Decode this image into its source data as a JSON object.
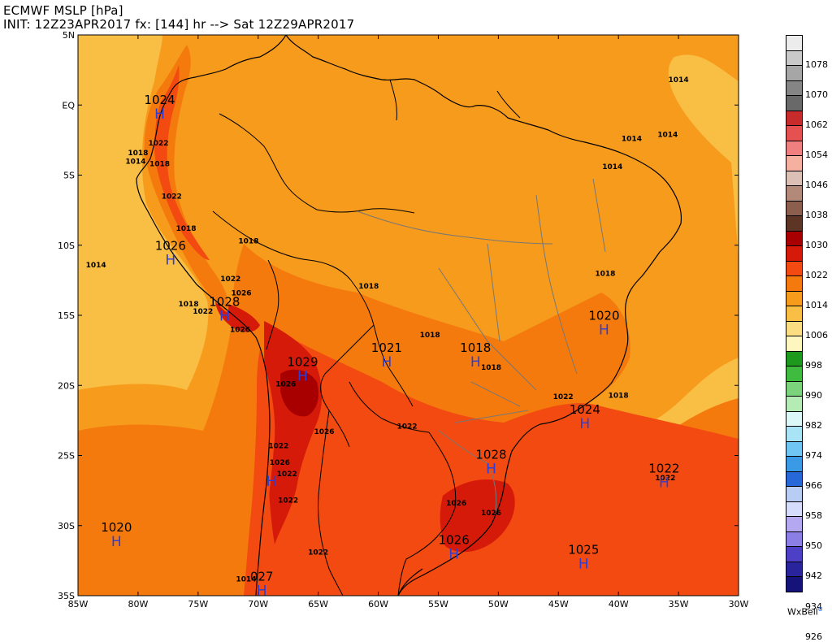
{
  "header": {
    "line1": "ECMWF MSLP [hPa]",
    "line2": "INIT: 12Z23APR2017 fx: [144] hr --> Sat 12Z29APR2017"
  },
  "map": {
    "lat_labels": [
      "5N",
      "EQ",
      "5S",
      "10S",
      "15S",
      "20S",
      "25S",
      "30S",
      "35S"
    ],
    "lon_labels": [
      "85W",
      "80W",
      "75W",
      "70W",
      "65W",
      "60W",
      "55W",
      "50W",
      "45W",
      "40W",
      "35W",
      "30W"
    ],
    "high_centers": [
      {
        "label": "1024",
        "lat": -0.5,
        "lon": -78.2
      },
      {
        "label": "1026",
        "lat": -10.9,
        "lon": -77.3
      },
      {
        "label": "1028",
        "lat": -14.9,
        "lon": -72.8
      },
      {
        "label": "1029",
        "lat": -19.2,
        "lon": -66.3
      },
      {
        "label": "1021",
        "lat": -18.2,
        "lon": -59.3
      },
      {
        "label": "1018",
        "lat": -18.2,
        "lon": -51.9
      },
      {
        "label": "1020",
        "lat": -15.9,
        "lon": -41.2
      },
      {
        "label": "1024",
        "lat": -22.6,
        "lon": -42.8
      },
      {
        "label": "1028",
        "lat": -25.8,
        "lon": -50.6
      },
      {
        "label": "1022",
        "lat": -26.8,
        "lon": -36.2
      },
      {
        "label": "1020",
        "lat": -31.0,
        "lon": -81.8
      },
      {
        "label": "1026",
        "lat": -31.9,
        "lon": -53.7
      },
      {
        "label": "1025",
        "lat": -32.6,
        "lon": -42.9
      },
      {
        "label": "027",
        "lat": -34.5,
        "lon": -69.7
      },
      {
        "label": "",
        "lat": -26.7,
        "lon": -68.9
      }
    ],
    "isobar_labels": [
      {
        "text": "1014",
        "lat": 1.8,
        "lon": -35.0
      },
      {
        "text": "1014",
        "lat": -2.4,
        "lon": -38.9
      },
      {
        "text": "1014",
        "lat": -2.1,
        "lon": -35.9
      },
      {
        "text": "1014",
        "lat": -4.4,
        "lon": -40.5
      },
      {
        "text": "1022",
        "lat": -2.7,
        "lon": -78.3
      },
      {
        "text": "1018",
        "lat": -3.4,
        "lon": -80.0
      },
      {
        "text": "1018",
        "lat": -4.2,
        "lon": -78.2
      },
      {
        "text": "1014",
        "lat": -4.0,
        "lon": -80.2
      },
      {
        "text": "1022",
        "lat": -6.5,
        "lon": -77.2
      },
      {
        "text": "1018",
        "lat": -8.8,
        "lon": -76.0
      },
      {
        "text": "1018",
        "lat": -9.7,
        "lon": -70.8
      },
      {
        "text": "1014",
        "lat": -11.4,
        "lon": -83.5
      },
      {
        "text": "1022",
        "lat": -12.4,
        "lon": -72.3
      },
      {
        "text": "1026",
        "lat": -13.4,
        "lon": -71.4
      },
      {
        "text": "1018",
        "lat": -14.2,
        "lon": -75.8
      },
      {
        "text": "1022",
        "lat": -14.7,
        "lon": -74.6
      },
      {
        "text": "1026",
        "lat": -16.0,
        "lon": -71.5
      },
      {
        "text": "1018",
        "lat": -12.9,
        "lon": -60.8
      },
      {
        "text": "1018",
        "lat": -12.0,
        "lon": -41.1
      },
      {
        "text": "1018",
        "lat": -16.4,
        "lon": -55.7
      },
      {
        "text": "1018",
        "lat": -18.7,
        "lon": -50.6
      },
      {
        "text": "1018",
        "lat": -20.7,
        "lon": -40.0
      },
      {
        "text": "1026",
        "lat": -19.9,
        "lon": -67.7
      },
      {
        "text": "1022",
        "lat": -20.8,
        "lon": -44.6
      },
      {
        "text": "1022",
        "lat": -22.9,
        "lon": -57.6
      },
      {
        "text": "1026",
        "lat": -23.3,
        "lon": -64.5
      },
      {
        "text": "1022",
        "lat": -24.3,
        "lon": -68.3
      },
      {
        "text": "1026",
        "lat": -25.5,
        "lon": -68.2
      },
      {
        "text": "1022",
        "lat": -26.3,
        "lon": -67.6
      },
      {
        "text": "1022",
        "lat": -26.6,
        "lon": -36.1
      },
      {
        "text": "1022",
        "lat": -28.2,
        "lon": -67.5
      },
      {
        "text": "1026",
        "lat": -28.4,
        "lon": -53.5
      },
      {
        "text": "1026",
        "lat": -29.1,
        "lon": -50.6
      },
      {
        "text": "1022",
        "lat": -31.9,
        "lon": -65.0
      },
      {
        "text": "1014",
        "lat": -33.8,
        "lon": -71.0
      }
    ]
  },
  "colorbar": {
    "labels": [
      "1078",
      "1070",
      "1062",
      "1054",
      "1046",
      "1038",
      "1030",
      "1022",
      "1014",
      "1006",
      "998",
      "990",
      "982",
      "974",
      "966",
      "958",
      "950",
      "942",
      "934",
      "926"
    ],
    "colors": [
      "#ececec",
      "#c9c9c9",
      "#a6a6a6",
      "#858585",
      "#696969",
      "#c72b2b",
      "#e55050",
      "#f07f7f",
      "#f6b0a0",
      "#dcbfb5",
      "#b38a7a",
      "#8c5e4e",
      "#5d3525",
      "#a80000",
      "#d61a0a",
      "#f24a10",
      "#f57a0d",
      "#f79b1c",
      "#f9be44",
      "#fbdd82",
      "#fdf6bf",
      "#1d9a1d",
      "#3fbb3f",
      "#7bd47b",
      "#b5ebb5",
      "#dcf7f7",
      "#a9e4f6",
      "#6fc6f2",
      "#3b9ae6",
      "#2768d8",
      "#b7cdf4",
      "#d6dcfb",
      "#b4a8f0",
      "#8b7fe6",
      "#4d40c7",
      "#2a249c",
      "#15127a"
    ]
  },
  "credit": {
    "text": "WxBell",
    "dot": "o"
  }
}
